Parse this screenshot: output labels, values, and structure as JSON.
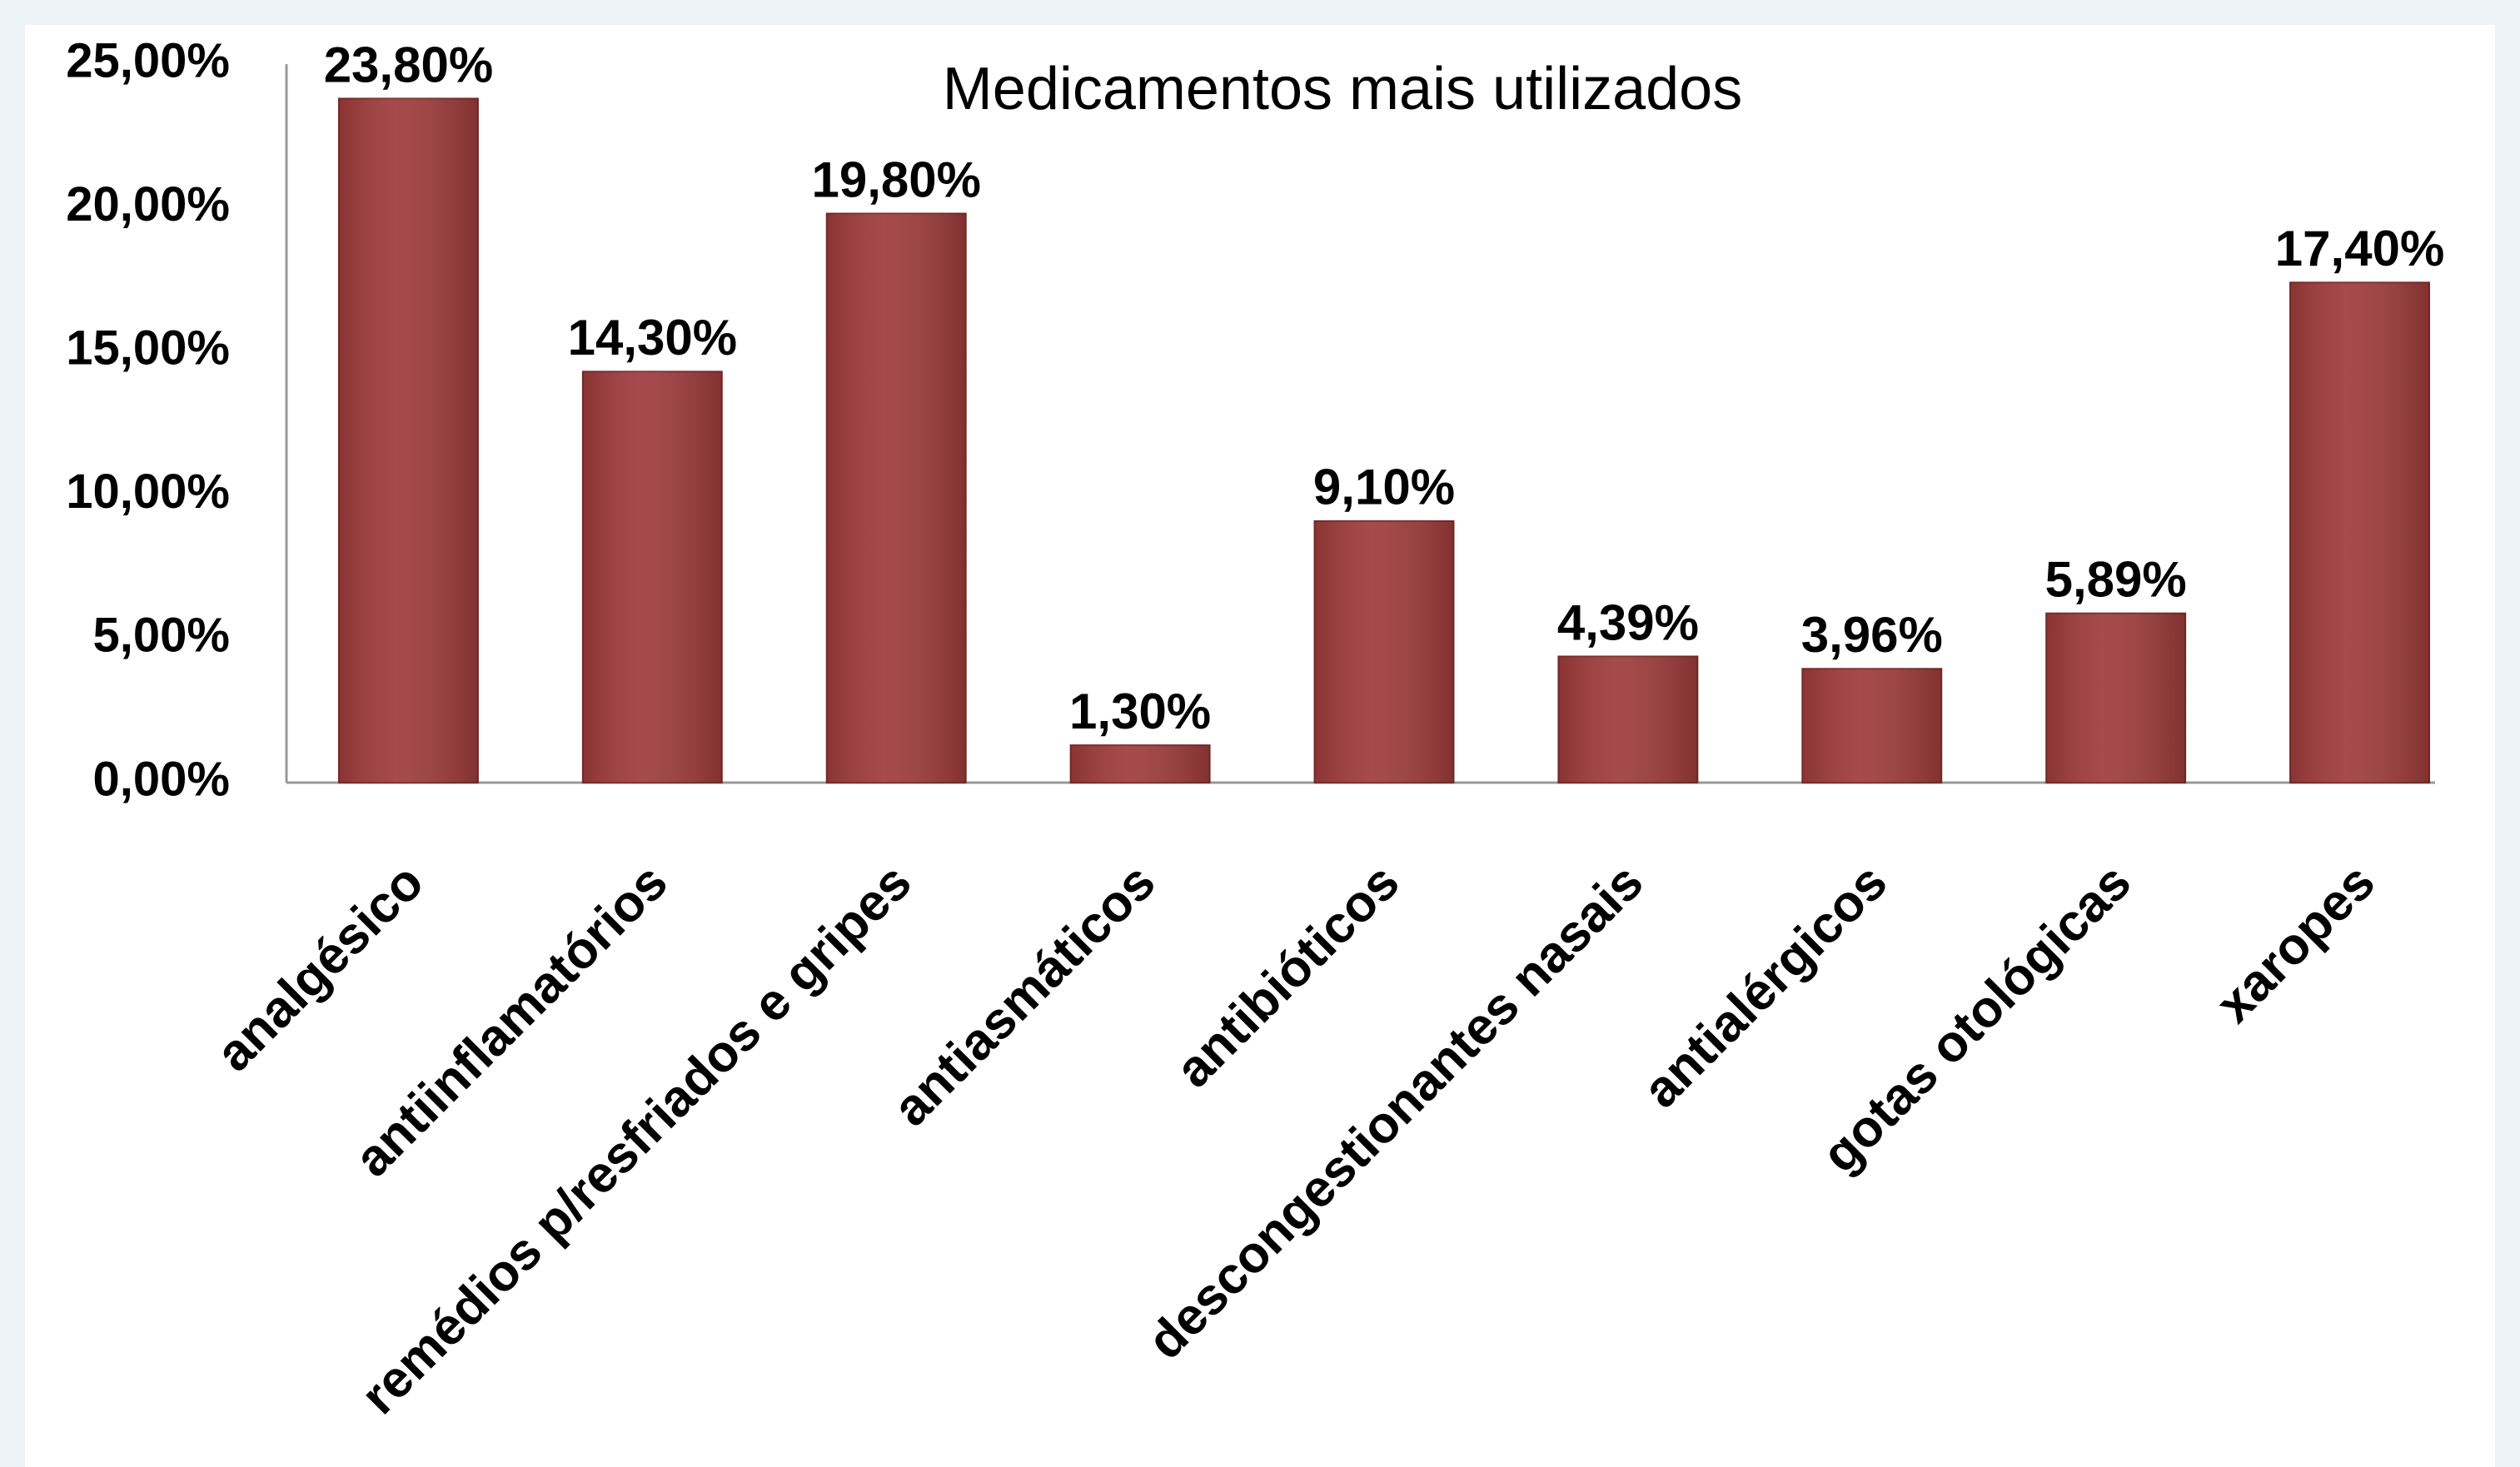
{
  "chart_data": {
    "type": "bar",
    "title": "Medicamentos mais utilizados",
    "categories": [
      "analgésico",
      "antiinflamatórios",
      "remédios p/resfriados e gripes",
      "antiasmáticos",
      "antibióticos",
      "descongestionantes nasais",
      "antialérgicos",
      "gotas otológicas",
      "xaropes"
    ],
    "values": [
      23.8,
      14.3,
      19.8,
      1.3,
      9.1,
      4.39,
      3.96,
      5.89,
      17.4
    ],
    "value_labels": [
      "23,80%",
      "14,30%",
      "19,80%",
      "1,30%",
      "9,10%",
      "4,39%",
      "3,96%",
      "5,89%",
      "17,40%"
    ],
    "color": "#9e3b3b",
    "ylim": [
      0,
      25
    ],
    "yticks": [
      {
        "value": 0,
        "label": "0,00%"
      },
      {
        "value": 5,
        "label": "5,00%"
      },
      {
        "value": 10,
        "label": "10,00%"
      },
      {
        "value": 15,
        "label": "15,00%"
      },
      {
        "value": 20,
        "label": "20,00%"
      },
      {
        "value": 25,
        "label": "25,00%"
      }
    ],
    "grid": false
  }
}
